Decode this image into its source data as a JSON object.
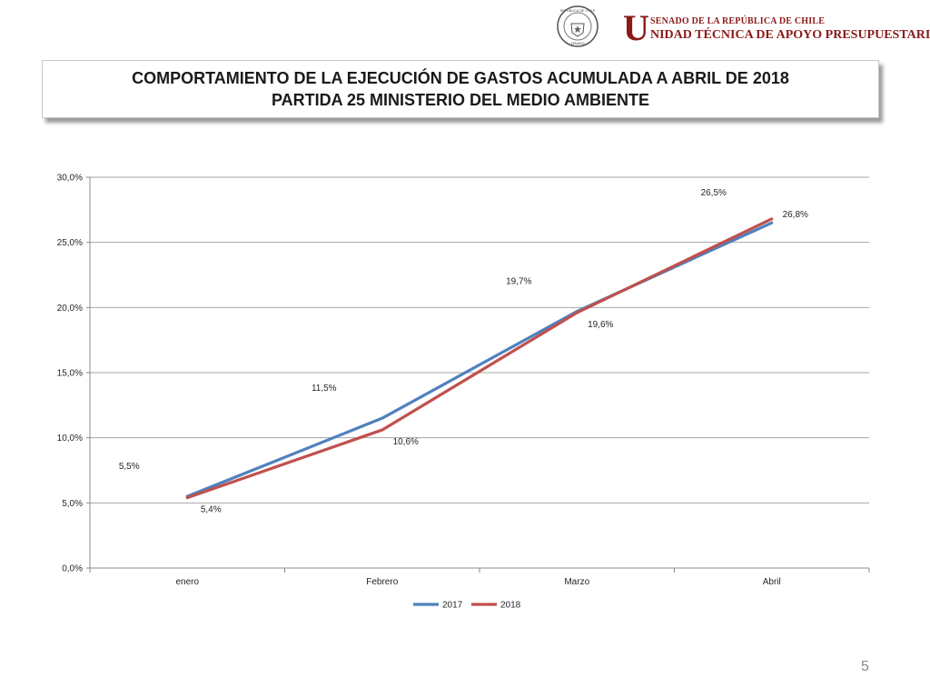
{
  "header": {
    "brand_letter": "U",
    "brand_top": "SENADO DE LA REPÚBLICA DE CHILE",
    "brand_bottom": "NIDAD TÉCNICA DE APOYO PRESUPUESTARIO",
    "seal_text_top": "REPÚBLICA DE CHILE",
    "seal_text_bottom": "SENADO"
  },
  "title": {
    "line1": "COMPORTAMIENTO DE LA EJECUCIÓN DE GASTOS ACUMULADA A ABRIL DE 2018",
    "line2": "PARTIDA 25 MINISTERIO DEL MEDIO AMBIENTE"
  },
  "page_number": "5",
  "colors": {
    "series_2017": "#4f81bd",
    "series_2018": "#c0504d",
    "grid": "#a6a6a6"
  },
  "chart_data": {
    "type": "line",
    "categories": [
      "enero",
      "Febrero",
      "Marzo",
      "Abril"
    ],
    "series": [
      {
        "name": "2017",
        "values": [
          5.5,
          11.5,
          19.7,
          26.5
        ],
        "labels": [
          "5,5%",
          "11,5%",
          "19,7%",
          "26,5%"
        ]
      },
      {
        "name": "2018",
        "values": [
          5.4,
          10.6,
          19.6,
          26.8
        ],
        "labels": [
          "5,4%",
          "10,6%",
          "19,6%",
          "26,8%"
        ]
      }
    ],
    "ylim": [
      0,
      30
    ],
    "yticks": [
      "0,0%",
      "5,0%",
      "10,0%",
      "15,0%",
      "20,0%",
      "25,0%",
      "30,0%"
    ],
    "grid": true,
    "legend": "bottom"
  }
}
